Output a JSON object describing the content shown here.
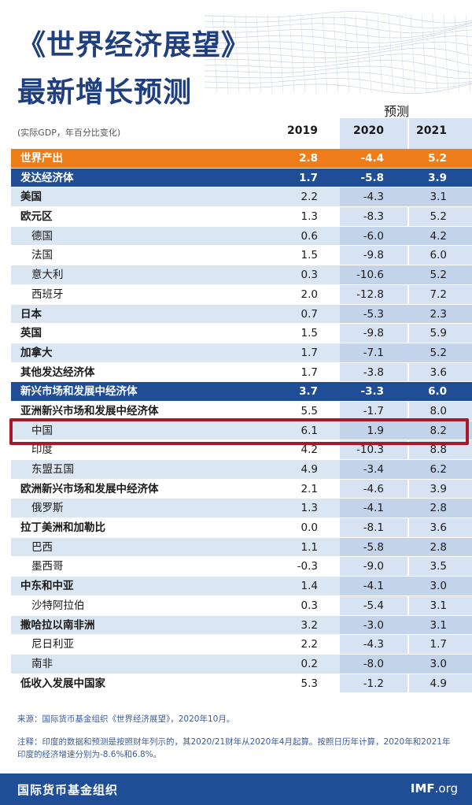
{
  "header": {
    "title_line1": "《世界经济展望》",
    "title_line2": "最新增长预测",
    "forecast_label": "预测",
    "unit_label": "(实际GDP，年百分比变化)",
    "years": [
      "2019",
      "2020",
      "2021"
    ]
  },
  "rows": [
    {
      "name": "世界产出",
      "v2019": "2.8",
      "v2020": "-4.4",
      "v2021": "5.2",
      "type": "world"
    },
    {
      "name": "发达经济体",
      "v2019": "1.7",
      "v2020": "-5.8",
      "v2021": "3.9",
      "type": "adv"
    },
    {
      "name": "美国",
      "v2019": "2.2",
      "v2020": "-4.3",
      "v2021": "3.1",
      "type": "bold"
    },
    {
      "name": "欧元区",
      "v2019": "1.3",
      "v2020": "-8.3",
      "v2021": "5.2",
      "type": "bold"
    },
    {
      "name": "德国",
      "v2019": "0.6",
      "v2020": "-6.0",
      "v2021": "4.2",
      "type": "sub"
    },
    {
      "name": "法国",
      "v2019": "1.5",
      "v2020": "-9.8",
      "v2021": "6.0",
      "type": "sub"
    },
    {
      "name": "意大利",
      "v2019": "0.3",
      "v2020": "-10.6",
      "v2021": "5.2",
      "type": "sub"
    },
    {
      "name": "西班牙",
      "v2019": "2.0",
      "v2020": "-12.8",
      "v2021": "7.2",
      "type": "sub"
    },
    {
      "name": "日本",
      "v2019": "0.7",
      "v2020": "-5.3",
      "v2021": "2.3",
      "type": "bold"
    },
    {
      "name": "英国",
      "v2019": "1.5",
      "v2020": "-9.8",
      "v2021": "5.9",
      "type": "bold"
    },
    {
      "name": "加拿大",
      "v2019": "1.7",
      "v2020": "-7.1",
      "v2021": "5.2",
      "type": "bold"
    },
    {
      "name": "其他发达经济体",
      "v2019": "1.7",
      "v2020": "-3.8",
      "v2021": "3.6",
      "type": "bold"
    },
    {
      "name": "新兴市场和发展中经济体",
      "v2019": "3.7",
      "v2020": "-3.3",
      "v2021": "6.0",
      "type": "adv"
    },
    {
      "name": "亚洲新兴市场和发展中经济体",
      "v2019": "5.5",
      "v2020": "-1.7",
      "v2021": "8.0",
      "type": "bold"
    },
    {
      "name": "中国",
      "v2019": "6.1",
      "v2020": "1.9",
      "v2021": "8.2",
      "type": "sub"
    },
    {
      "name": "印度",
      "v2019": "4.2",
      "v2020": "-10.3",
      "v2021": "8.8",
      "type": "sub"
    },
    {
      "name": "东盟五国",
      "v2019": "4.9",
      "v2020": "-3.4",
      "v2021": "6.2",
      "type": "sub"
    },
    {
      "name": "欧洲新兴市场和发展中经济体",
      "v2019": "2.1",
      "v2020": "-4.6",
      "v2021": "3.9",
      "type": "bold"
    },
    {
      "name": "俄罗斯",
      "v2019": "1.3",
      "v2020": "-4.1",
      "v2021": "2.8",
      "type": "sub"
    },
    {
      "name": "拉丁美洲和加勒比",
      "v2019": "0.0",
      "v2020": "-8.1",
      "v2021": "3.6",
      "type": "bold"
    },
    {
      "name": "巴西",
      "v2019": "1.1",
      "v2020": "-5.8",
      "v2021": "2.8",
      "type": "sub"
    },
    {
      "name": "墨西哥",
      "v2019": "-0.3",
      "v2020": "-9.0",
      "v2021": "3.5",
      "type": "sub"
    },
    {
      "name": "中东和中亚",
      "v2019": "1.4",
      "v2020": "-4.1",
      "v2021": "3.0",
      "type": "bold"
    },
    {
      "name": "沙特阿拉伯",
      "v2019": "0.3",
      "v2020": "-5.4",
      "v2021": "3.1",
      "type": "sub"
    },
    {
      "name": "撒哈拉以南非洲",
      "v2019": "3.2",
      "v2020": "-3.0",
      "v2021": "3.1",
      "type": "bold"
    },
    {
      "name": "尼日利亚",
      "v2019": "2.2",
      "v2020": "-4.3",
      "v2021": "1.7",
      "type": "sub"
    },
    {
      "name": "南非",
      "v2019": "0.2",
      "v2020": "-8.0",
      "v2021": "3.0",
      "type": "sub"
    },
    {
      "name": "低收入发展中国家",
      "v2019": "5.3",
      "v2020": "-1.2",
      "v2021": "4.9",
      "type": "bold"
    }
  ],
  "source": "来源：国际货币基金组织《世界经济展望》，2020年10月。",
  "note": "注释：印度的数据和预测是按照财年列示的，其2020/21财年从2020年4月起算。按照日历年计算，2020年和2021年印度的经济增速分别为-8.6%和6.8%。",
  "footer": {
    "org": "国际货币基金组织",
    "site_main": "IMF",
    "site_tld": ".org"
  },
  "colors": {
    "title_blue": "#1f3f7f",
    "world_orange": "#ef7d1a",
    "group_blue": "#1f4e97",
    "highlight_red": "#a8182a"
  }
}
